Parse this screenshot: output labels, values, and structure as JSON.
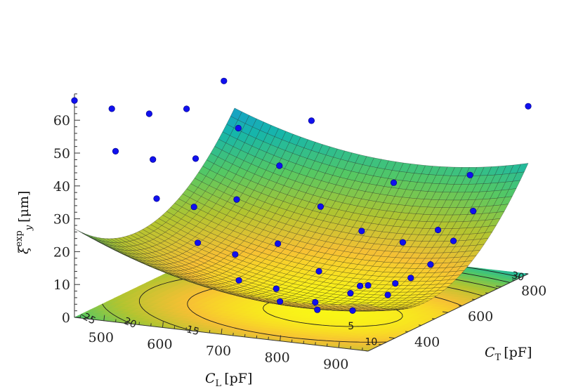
{
  "chart_data": {
    "type": "surface3d",
    "title": "",
    "xlabel": {
      "var": "C",
      "sub": "L",
      "unit": "[pF]"
    },
    "ylabel": {
      "var": "C",
      "sub": "T",
      "unit": "[pF]"
    },
    "zlabel": {
      "var": "ξ",
      "sup": "exp",
      "sub": "y",
      "unit": "[μm]"
    },
    "x_ticks": [
      500,
      600,
      700,
      800,
      900
    ],
    "y_ticks": [
      400,
      600,
      800
    ],
    "z_ticks": [
      0,
      10,
      20,
      30,
      40,
      50,
      60
    ],
    "xlim": [
      450,
      950
    ],
    "ylim": [
      300,
      900
    ],
    "zlim": [
      0,
      68
    ],
    "colormap": "parula",
    "marker_color": "#1010ee",
    "contour_levels": [
      5,
      10,
      15,
      20,
      25,
      30,
      35,
      40,
      45,
      50,
      55,
      60
    ],
    "model": {
      "x0": 790,
      "y0": 520,
      "z0": 3.5,
      "ax": 0.000115,
      "ay": 0.00018,
      "bxy": 2e-05
    },
    "measured_points": [
      {
        "x": 450,
        "y": 300,
        "z": 66
      },
      {
        "x": 450,
        "y": 440,
        "z": 58
      },
      {
        "x": 450,
        "y": 580,
        "z": 51
      },
      {
        "x": 450,
        "y": 720,
        "z": 47
      },
      {
        "x": 450,
        "y": 860,
        "z": 50
      },
      {
        "x": 520,
        "y": 300,
        "z": 52
      },
      {
        "x": 520,
        "y": 440,
        "z": 44
      },
      {
        "x": 520,
        "y": 600,
        "z": 38
      },
      {
        "x": 520,
        "y": 760,
        "z": 41
      },
      {
        "x": 590,
        "y": 300,
        "z": 39
      },
      {
        "x": 590,
        "y": 440,
        "z": 31
      },
      {
        "x": 590,
        "y": 600,
        "z": 27
      },
      {
        "x": 590,
        "y": 760,
        "z": 31
      },
      {
        "x": 590,
        "y": 880,
        "z": 40
      },
      {
        "x": 660,
        "y": 300,
        "z": 27
      },
      {
        "x": 660,
        "y": 440,
        "z": 18
      },
      {
        "x": 660,
        "y": 600,
        "z": 15
      },
      {
        "x": 660,
        "y": 760,
        "z": 20
      },
      {
        "x": 730,
        "y": 300,
        "z": 17
      },
      {
        "x": 730,
        "y": 440,
        "z": 9
      },
      {
        "x": 730,
        "y": 600,
        "z": 8
      },
      {
        "x": 730,
        "y": 760,
        "z": 14
      },
      {
        "x": 730,
        "y": 880,
        "z": 24
      },
      {
        "x": 800,
        "y": 300,
        "z": 12
      },
      {
        "x": 800,
        "y": 440,
        "z": 4
      },
      {
        "x": 800,
        "y": 600,
        "z": 5
      },
      {
        "x": 800,
        "y": 760,
        "z": 12
      },
      {
        "x": 860,
        "y": 300,
        "z": 13
      },
      {
        "x": 860,
        "y": 440,
        "z": 5
      },
      {
        "x": 860,
        "y": 600,
        "z": 7
      },
      {
        "x": 860,
        "y": 760,
        "z": 17
      },
      {
        "x": 860,
        "y": 880,
        "z": 29
      },
      {
        "x": 920,
        "y": 300,
        "z": 17
      },
      {
        "x": 920,
        "y": 440,
        "z": 11
      },
      {
        "x": 920,
        "y": 600,
        "z": 14
      },
      {
        "x": 920,
        "y": 760,
        "z": 24
      },
      {
        "x": 950,
        "y": 300,
        "z": 20
      },
      {
        "x": 950,
        "y": 460,
        "z": 16
      },
      {
        "x": 950,
        "y": 620,
        "z": 21
      },
      {
        "x": 950,
        "y": 900,
        "z": 51
      }
    ]
  }
}
